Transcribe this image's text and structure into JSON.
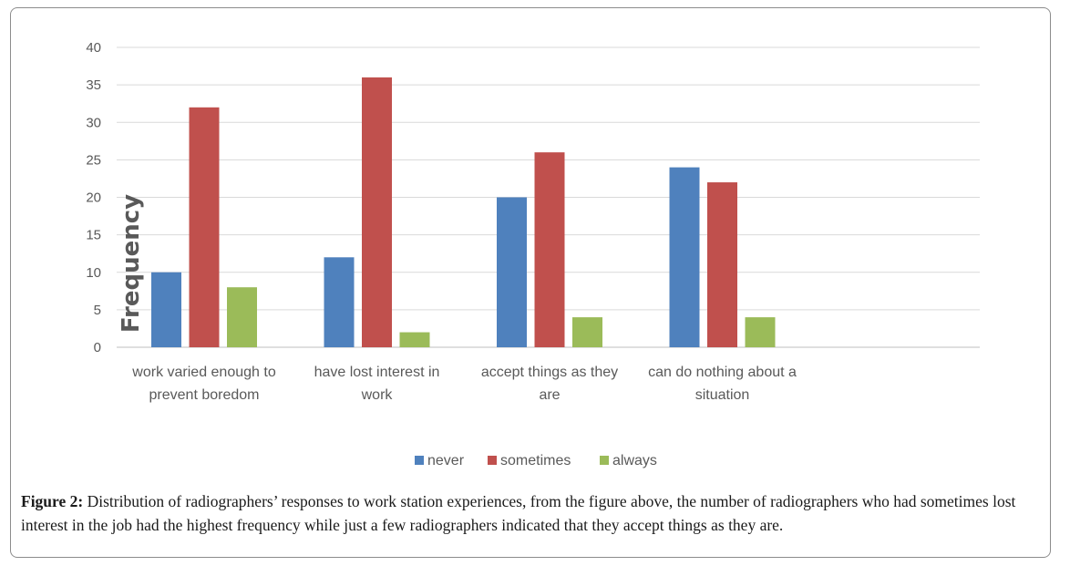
{
  "chart_data": {
    "type": "bar",
    "title": "",
    "ylabel": "Frequency",
    "xlabel": "",
    "ylim": [
      0,
      40
    ],
    "yticks": [
      0,
      5,
      10,
      15,
      20,
      25,
      30,
      35,
      40
    ],
    "categories": [
      [
        "work varied enough to",
        "prevent boredom"
      ],
      [
        "have lost interest in",
        "work"
      ],
      [
        "accept things as they",
        "are"
      ],
      [
        "can do nothing about a",
        "situation"
      ]
    ],
    "series": [
      {
        "name": "never",
        "color": "#4f81bd",
        "values": [
          10,
          12,
          20,
          24
        ]
      },
      {
        "name": "sometimes",
        "color": "#c0504d",
        "values": [
          32,
          36,
          26,
          22
        ]
      },
      {
        "name": "always",
        "color": "#9bbb59",
        "values": [
          8,
          2,
          4,
          4
        ]
      }
    ],
    "grid": true,
    "legend_position": "bottom"
  },
  "caption": {
    "label": "Figure 2:",
    "text": " Distribution of radiographers’ responses to work station experiences, from the figure above, the number of radiographers who had sometimes lost interest in the job had the highest frequency while just a few radiographers indicated that they accept things as they are."
  }
}
